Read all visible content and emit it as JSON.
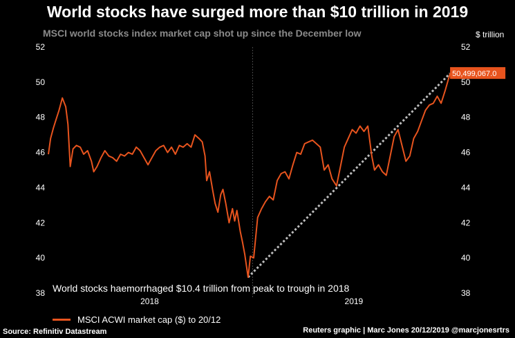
{
  "header": {
    "title": "World stocks have surged more than $10 trillion in 2019",
    "subtitle": "MSCI world stocks index market cap shot up since the December low",
    "unit": "$ trillion"
  },
  "annotation": "World stocks haemorrhaged $10.4 trillion from peak to trough in 2018",
  "legend": {
    "label": "MSCI ACWI market cap ($) to 20/12"
  },
  "footer": {
    "source": "Source: Refinitiv Datastream",
    "credit": "Reuters graphic | Marc Jones 20/12/2019 @marcjonesrtrs"
  },
  "colors": {
    "series": "#e8541e",
    "trend": "#bdbdbd",
    "grid": "#3a3a3a",
    "background": "#000000"
  },
  "chart_data": {
    "type": "line",
    "ylim": [
      38,
      52
    ],
    "yticks": [
      38,
      40,
      42,
      44,
      46,
      48,
      50,
      52
    ],
    "xlim": [
      "2018-01-01",
      "2019-12-31"
    ],
    "xticks": [
      {
        "label": "2018",
        "date": "2018-07-01"
      },
      {
        "label": "2019",
        "date": "2019-07-01"
      }
    ],
    "year_divider": "2019-01-01",
    "grid": false,
    "last_value_label": "50,499,067.0",
    "trend_line": [
      {
        "date": "2018-12-24",
        "value": 38.9
      },
      {
        "date": "2019-12-20",
        "value": 50.5
      }
    ],
    "series": [
      {
        "x": [
          "2018-01-01",
          "2018-01-05",
          "2018-01-10",
          "2018-01-15",
          "2018-01-20",
          "2018-01-26",
          "2018-02-01",
          "2018-02-05",
          "2018-02-09",
          "2018-02-14",
          "2018-02-20",
          "2018-02-27",
          "2018-03-05",
          "2018-03-12",
          "2018-03-19",
          "2018-03-23",
          "2018-03-29",
          "2018-04-05",
          "2018-04-12",
          "2018-04-19",
          "2018-04-26",
          "2018-05-03",
          "2018-05-10",
          "2018-05-17",
          "2018-05-24",
          "2018-05-31",
          "2018-06-07",
          "2018-06-14",
          "2018-06-21",
          "2018-06-28",
          "2018-07-05",
          "2018-07-12",
          "2018-07-19",
          "2018-07-26",
          "2018-08-02",
          "2018-08-09",
          "2018-08-16",
          "2018-08-23",
          "2018-08-30",
          "2018-09-06",
          "2018-09-13",
          "2018-09-20",
          "2018-09-27",
          "2018-10-03",
          "2018-10-08",
          "2018-10-11",
          "2018-10-16",
          "2018-10-22",
          "2018-10-26",
          "2018-10-31",
          "2018-11-05",
          "2018-11-09",
          "2018-11-14",
          "2018-11-20",
          "2018-11-26",
          "2018-11-30",
          "2018-12-04",
          "2018-12-10",
          "2018-12-14",
          "2018-12-18",
          "2018-12-24",
          "2018-12-28",
          "2019-01-03",
          "2019-01-10",
          "2019-01-17",
          "2019-01-24",
          "2019-01-31",
          "2019-02-07",
          "2019-02-14",
          "2019-02-21",
          "2019-02-28",
          "2019-03-07",
          "2019-03-14",
          "2019-03-21",
          "2019-03-28",
          "2019-04-04",
          "2019-04-11",
          "2019-04-18",
          "2019-04-25",
          "2019-05-02",
          "2019-05-09",
          "2019-05-16",
          "2019-05-23",
          "2019-05-31",
          "2019-06-07",
          "2019-06-14",
          "2019-06-21",
          "2019-06-28",
          "2019-07-05",
          "2019-07-12",
          "2019-07-19",
          "2019-07-26",
          "2019-08-02",
          "2019-08-07",
          "2019-08-14",
          "2019-08-21",
          "2019-08-28",
          "2019-09-04",
          "2019-09-11",
          "2019-09-18",
          "2019-09-25",
          "2019-10-02",
          "2019-10-09",
          "2019-10-16",
          "2019-10-23",
          "2019-10-30",
          "2019-11-06",
          "2019-11-13",
          "2019-11-20",
          "2019-11-27",
          "2019-12-04",
          "2019-12-11",
          "2019-12-20"
        ],
        "values": [
          45.9,
          46.8,
          47.4,
          47.9,
          48.4,
          49.1,
          48.6,
          47.6,
          45.2,
          46.2,
          46.4,
          46.3,
          45.9,
          46.1,
          45.5,
          44.9,
          45.2,
          45.7,
          46.1,
          45.8,
          45.7,
          45.5,
          45.9,
          45.8,
          46.0,
          45.9,
          46.3,
          46.1,
          45.7,
          45.3,
          45.7,
          46.1,
          46.3,
          46.4,
          46.0,
          46.3,
          45.9,
          46.4,
          46.3,
          46.5,
          46.3,
          47.0,
          46.8,
          46.6,
          45.8,
          44.4,
          44.9,
          43.8,
          43.1,
          42.6,
          43.6,
          43.9,
          43.1,
          42.0,
          42.8,
          42.1,
          42.7,
          41.5,
          40.9,
          40.2,
          38.9,
          40.1,
          40.0,
          42.3,
          42.8,
          43.2,
          43.5,
          43.3,
          44.4,
          44.8,
          44.9,
          44.5,
          45.3,
          46.0,
          45.9,
          46.5,
          46.6,
          46.7,
          46.5,
          46.3,
          45.0,
          45.3,
          44.5,
          44.1,
          45.2,
          46.3,
          46.8,
          47.3,
          47.1,
          47.5,
          47.2,
          47.5,
          45.8,
          45.0,
          45.3,
          44.9,
          44.7,
          45.8,
          46.9,
          47.3,
          46.4,
          45.5,
          45.8,
          46.8,
          47.2,
          47.8,
          48.4,
          48.7,
          48.8,
          49.2,
          48.8,
          49.5,
          50.5
        ]
      }
    ]
  }
}
